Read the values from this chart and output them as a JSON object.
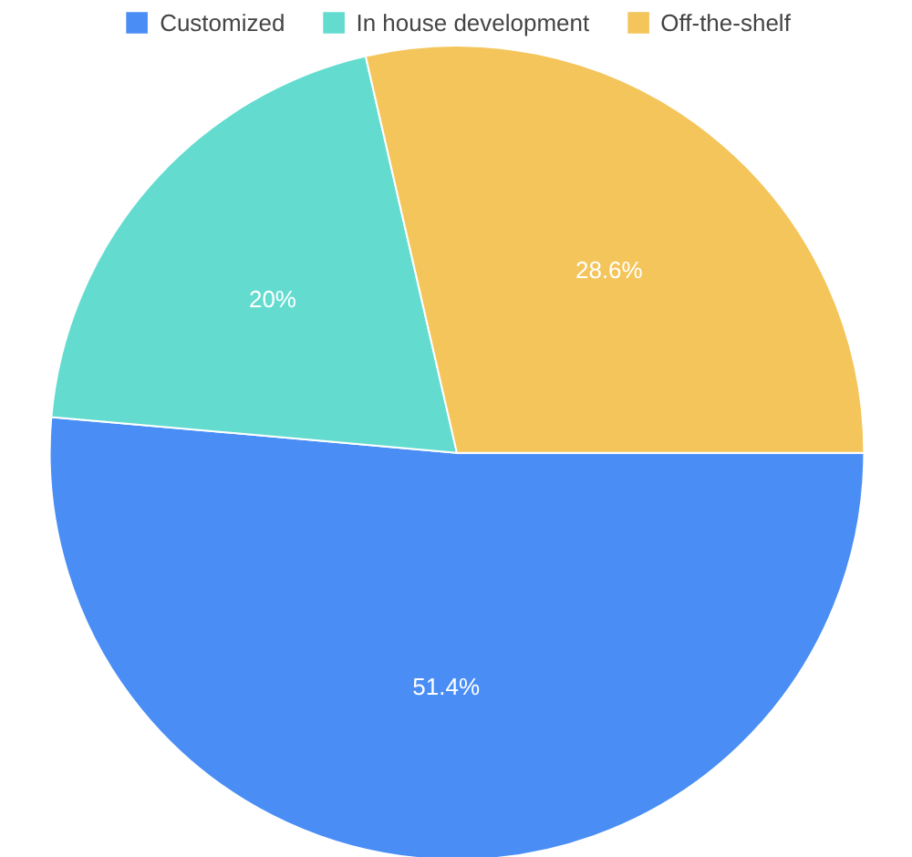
{
  "chart_data": {
    "type": "pie",
    "categories": [
      "Customized",
      "In house development",
      "Off-the-shelf"
    ],
    "values": [
      51.4,
      20,
      28.6
    ],
    "value_labels": [
      "51.4%",
      "20%",
      "28.6%"
    ],
    "colors": [
      "#4a8ef5",
      "#63dccf",
      "#f4c55a"
    ],
    "legend": "top"
  }
}
